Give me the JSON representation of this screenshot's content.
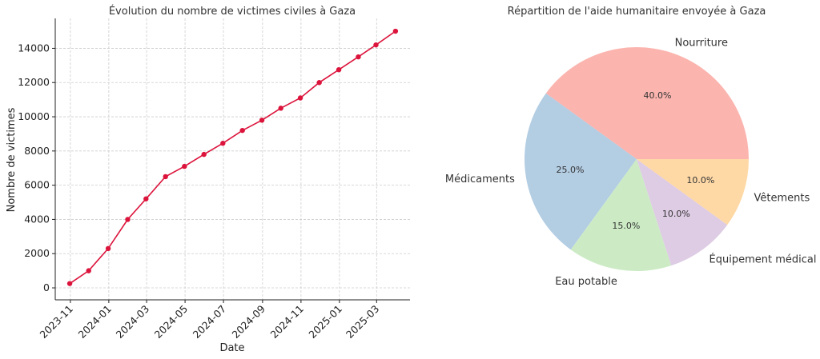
{
  "chart_data": [
    {
      "type": "line",
      "title": "Évolution du nombre de victimes civiles à Gaza",
      "xlabel": "Date",
      "ylabel": "Nombre de victimes",
      "x": [
        "2023-10-31",
        "2023-11-30",
        "2023-12-31",
        "2024-01-31",
        "2024-02-29",
        "2024-03-31",
        "2024-04-30",
        "2024-05-31",
        "2024-06-30",
        "2024-07-31",
        "2024-08-31",
        "2024-09-30",
        "2024-10-31",
        "2024-11-30",
        "2024-12-31",
        "2025-01-31",
        "2025-02-28",
        "2025-03-31"
      ],
      "series": [
        {
          "values": [
            250,
            1000,
            2300,
            4000,
            5200,
            6500,
            7100,
            7800,
            8450,
            9200,
            9800,
            10500,
            11100,
            12000,
            12750,
            13500,
            14200,
            15000
          ],
          "color": "#dc143c"
        }
      ],
      "xtick_labels": [
        "2023-11",
        "2024-01",
        "2024-03",
        "2024-05",
        "2024-07",
        "2024-09",
        "2024-11",
        "2025-01",
        "2025-03"
      ],
      "xtick_dates": [
        "2023-11-01",
        "2024-01-01",
        "2024-03-01",
        "2024-05-01",
        "2024-07-01",
        "2024-09-01",
        "2024-11-01",
        "2025-01-01",
        "2025-03-01"
      ],
      "yticks": [
        0,
        2000,
        4000,
        6000,
        8000,
        10000,
        12000,
        14000
      ],
      "ylim": [
        -700,
        15750
      ],
      "xlim": [
        "2023-10-08",
        "2025-04-23"
      ],
      "grid": true
    },
    {
      "type": "pie",
      "title": "Répartition de l'aide humanitaire envoyée à Gaza",
      "slices": [
        {
          "label": "Nourriture",
          "value": 40.0,
          "pct": "40.0%",
          "color": "#fbb4ae"
        },
        {
          "label": "Médicaments",
          "value": 25.0,
          "pct": "25.0%",
          "color": "#b3cde3"
        },
        {
          "label": "Eau potable",
          "value": 15.0,
          "pct": "15.0%",
          "color": "#ccebc5"
        },
        {
          "label": "Équipement médical",
          "value": 10.0,
          "pct": "10.0%",
          "color": "#decbe4"
        },
        {
          "label": "Vêtements",
          "value": 10.0,
          "pct": "10.0%",
          "color": "#fed9a6"
        }
      ]
    }
  ]
}
